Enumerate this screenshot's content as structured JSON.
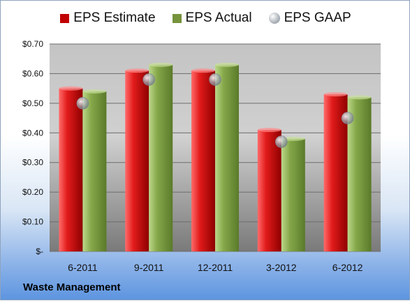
{
  "company_label": "Waste Management",
  "chart_data": {
    "type": "bar",
    "title": "",
    "xlabel": "",
    "ylabel": "",
    "categories": [
      "6-2011",
      "9-2011",
      "12-2011",
      "3-2012",
      "6-2012"
    ],
    "series": [
      {
        "name": "EPS Estimate",
        "color": "#c00000",
        "values": [
          0.55,
          0.61,
          0.61,
          0.41,
          0.53
        ]
      },
      {
        "name": "EPS Actual",
        "color": "#77933c",
        "values": [
          0.54,
          0.63,
          0.63,
          0.38,
          0.52
        ]
      },
      {
        "name": "EPS GAAP",
        "marker": "sphere",
        "color": "#a0a8b0",
        "values": [
          0.5,
          0.58,
          0.58,
          0.37,
          0.45
        ]
      }
    ],
    "ylim": [
      0,
      0.7
    ],
    "yticks": [
      0,
      0.1,
      0.2,
      0.3,
      0.4,
      0.5,
      0.6,
      0.7
    ],
    "ytick_labels": [
      "$-",
      "$0.10",
      "$0.20",
      "$0.30",
      "$0.40",
      "$0.50",
      "$0.60",
      "$0.70"
    ],
    "grid": true,
    "legend": "top"
  }
}
